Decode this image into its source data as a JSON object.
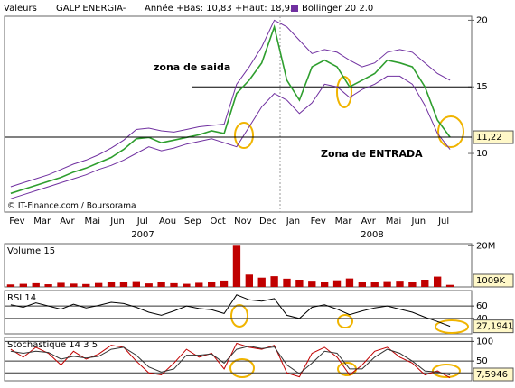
{
  "chart_data": [
    {
      "type": "line",
      "header": "Valeurs",
      "title": "GALP ENERGIA-",
      "subtitle": "Année +Bas: 10,83 +Haut: 18,95",
      "source": "© IT-Finance.com / Boursorama",
      "annotations": [
        {
          "text": "zona de saida",
          "color": "#c00000"
        },
        {
          "text": "Zona de ENTRADA",
          "color": "#f0b400"
        }
      ],
      "categories": [
        "Fev",
        null,
        "Mar",
        null,
        "Avr",
        null,
        "Mai",
        null,
        "Jun",
        null,
        "Jul",
        null,
        "Aou",
        null,
        "Sep",
        null,
        "Oct",
        null,
        "Nov",
        null,
        "Dec",
        null,
        "Jan",
        null,
        "Fev",
        null,
        "Mar",
        null,
        "Avr",
        null,
        "Mai",
        null,
        "Jun",
        null,
        "Jul",
        null
      ],
      "years": [
        "2007",
        "2008"
      ],
      "series": [
        {
          "name": "GALP ENERGIA-",
          "color": "#2e9e2e",
          "values": [
            7.0,
            7.3,
            7.6,
            7.9,
            8.2,
            8.6,
            8.9,
            9.3,
            9.7,
            10.3,
            11.1,
            11.2,
            10.8,
            11.0,
            11.2,
            11.4,
            11.7,
            11.5,
            14.5,
            15.5,
            16.8,
            19.5,
            15.5,
            14.0,
            16.5,
            17.0,
            16.5,
            15.0,
            15.5,
            16.0,
            17.0,
            16.8,
            16.5,
            15.0,
            12.5,
            11.22
          ]
        }
      ],
      "bollinger": {
        "name": "Bollinger 20 2.0",
        "color": "#7030a0",
        "upper": [
          7.5,
          7.8,
          8.1,
          8.4,
          8.8,
          9.2,
          9.5,
          9.9,
          10.4,
          11.0,
          11.8,
          11.9,
          11.7,
          11.6,
          11.8,
          12.0,
          12.1,
          12.2,
          15.2,
          16.5,
          18.0,
          20.0,
          19.5,
          18.5,
          17.5,
          17.8,
          17.6,
          17.0,
          16.5,
          16.8,
          17.6,
          17.8,
          17.6,
          16.8,
          16.0,
          15.5
        ],
        "lower": [
          6.6,
          6.9,
          7.2,
          7.5,
          7.8,
          8.1,
          8.4,
          8.8,
          9.1,
          9.5,
          10.0,
          10.5,
          10.2,
          10.4,
          10.7,
          10.9,
          11.1,
          10.8,
          10.5,
          12.0,
          13.5,
          14.5,
          14.0,
          13.0,
          13.8,
          15.2,
          15.0,
          14.2,
          14.8,
          15.2,
          15.8,
          15.8,
          15.2,
          13.6,
          11.5,
          10.3
        ]
      },
      "hline": 15,
      "last": {
        "value": 11.22,
        "label": "11,22"
      },
      "ylim": [
        5.6,
        20.3
      ],
      "yticks": [
        10,
        15,
        20
      ],
      "grid": false
    },
    {
      "type": "bar",
      "title": "Volume 15",
      "color": "#c00000",
      "values": [
        1200000,
        1500000,
        1800000,
        1300000,
        2000000,
        1600000,
        1400000,
        1900000,
        2200000,
        2500000,
        2800000,
        1700000,
        2400000,
        1800000,
        1500000,
        2000000,
        2300000,
        3100000,
        20000000,
        6000000,
        4500000,
        5200000,
        4000000,
        3500000,
        3000000,
        2600000,
        3200000,
        4100000,
        2500000,
        2200000,
        2800000,
        3000000,
        2600000,
        3500000,
        5000000,
        1009000
      ],
      "last": {
        "value": 1009000,
        "label": "1009K"
      },
      "ylim": [
        0,
        21000000
      ],
      "yticks": [
        {
          "value": 20000000,
          "label": "20M"
        }
      ],
      "grid": false
    },
    {
      "type": "line",
      "title": "RSI 14",
      "series": [
        {
          "color": "#000000",
          "values": [
            62,
            58,
            65,
            60,
            55,
            63,
            57,
            61,
            66,
            64,
            58,
            50,
            45,
            52,
            60,
            56,
            54,
            48,
            78,
            70,
            68,
            72,
            45,
            40,
            58,
            62,
            55,
            46,
            52,
            57,
            60,
            55,
            50,
            42,
            35,
            27.1941
          ]
        }
      ],
      "last": {
        "value": 27.1941,
        "label": "27,1941"
      },
      "ylim": [
        15,
        85
      ],
      "yticks": [
        60,
        40
      ],
      "grid": true
    },
    {
      "type": "line",
      "title": "Stochastique 14 3 5",
      "series": [
        {
          "color": "#c00000",
          "values": [
            80,
            60,
            85,
            70,
            40,
            75,
            55,
            68,
            90,
            85,
            50,
            20,
            15,
            45,
            80,
            60,
            70,
            30,
            95,
            85,
            80,
            90,
            20,
            10,
            70,
            85,
            60,
            15,
            40,
            75,
            85,
            60,
            45,
            15,
            25,
            7.5946
          ]
        },
        {
          "color": "#333333",
          "values": [
            75,
            70,
            75,
            72,
            55,
            62,
            58,
            62,
            80,
            85,
            65,
            35,
            22,
            30,
            65,
            65,
            68,
            45,
            80,
            88,
            82,
            86,
            40,
            18,
            45,
            75,
            70,
            30,
            30,
            60,
            80,
            70,
            50,
            25,
            22,
            15
          ]
        }
      ],
      "last": {
        "value": 7.5946,
        "label": "7,5946"
      },
      "ylim": [
        0,
        110
      ],
      "yticks": [
        100,
        50,
        20
      ],
      "grid": true
    }
  ]
}
